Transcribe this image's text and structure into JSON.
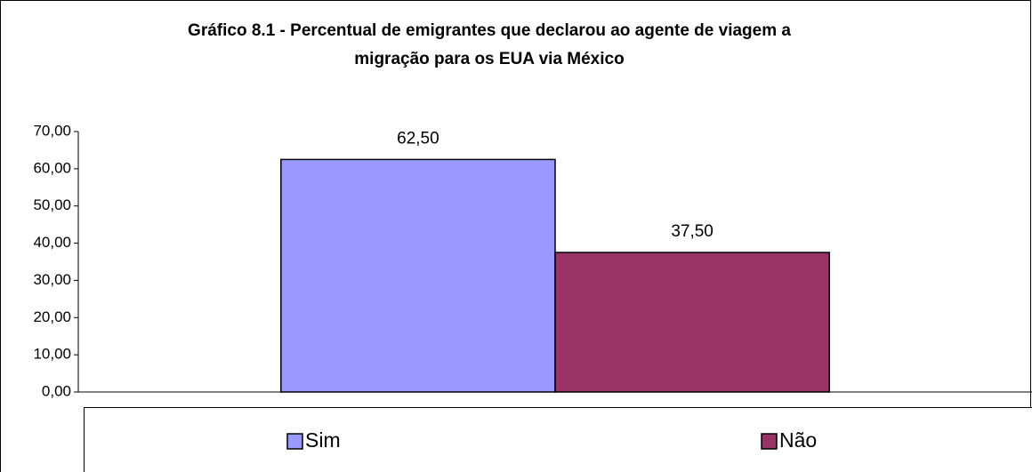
{
  "chart_data": {
    "type": "bar",
    "title": [
      "Gráfico 8.1 - Percentual de emigrantes que declarou ao agente de viagem a",
      "migração para os EUA via México"
    ],
    "categories": [
      null
    ],
    "series": [
      {
        "name": "Sim",
        "color": "#9999ff",
        "values": [
          62.5
        ],
        "value_labels": [
          "62,50"
        ]
      },
      {
        "name": "Não",
        "color": "#993366",
        "values": [
          37.5
        ],
        "value_labels": [
          "37,50"
        ]
      }
    ],
    "ylim": [
      0,
      70
    ],
    "yticks": [
      {
        "value": 0,
        "label": "0,00"
      },
      {
        "value": 10,
        "label": "10,00"
      },
      {
        "value": 20,
        "label": "20,00"
      },
      {
        "value": 30,
        "label": "30,00"
      },
      {
        "value": 40,
        "label": "40,00"
      },
      {
        "value": 50,
        "label": "50,00"
      },
      {
        "value": 60,
        "label": "60,00"
      },
      {
        "value": 70,
        "label": "70,00"
      }
    ],
    "legend": "bottom"
  }
}
